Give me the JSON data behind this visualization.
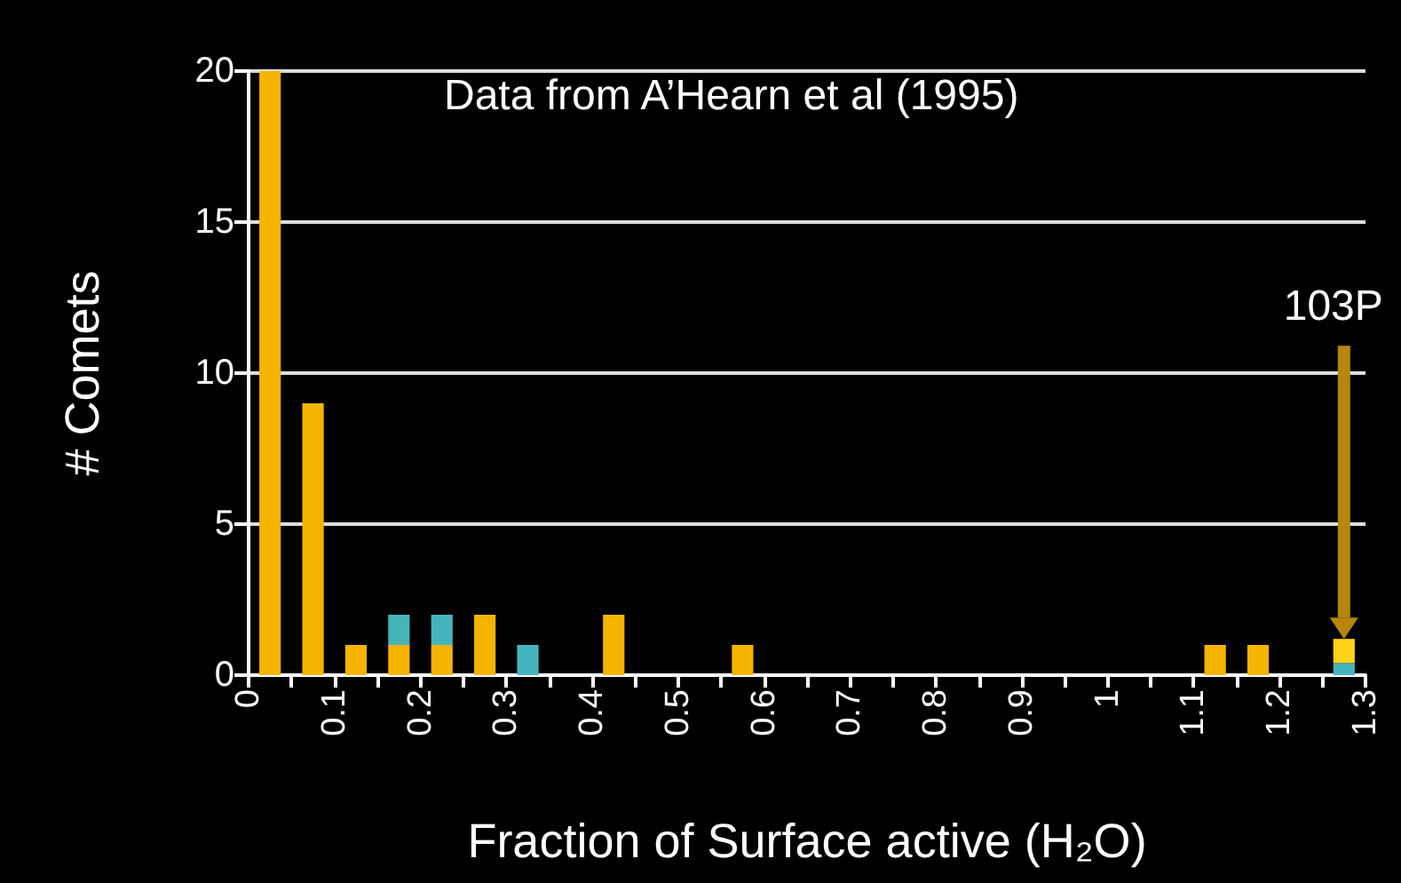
{
  "chart_data": {
    "type": "bar",
    "xlabel": "Fraction of Surface active (H₂O)",
    "ylabel": "# Comets",
    "x": [
      0.025,
      0.075,
      0.125,
      0.175,
      0.225,
      0.275,
      0.325,
      0.375,
      0.425,
      0.475,
      0.525,
      0.575,
      0.625,
      0.675,
      0.725,
      0.775,
      0.825,
      0.875,
      0.925,
      0.975,
      1.025,
      1.075,
      1.125,
      1.175,
      1.225,
      1.275
    ],
    "stacked": true,
    "series": [
      {
        "color": "#f5b400",
        "values": [
          20,
          9,
          1,
          1,
          1,
          2,
          null,
          null,
          2,
          null,
          null,
          1,
          null,
          null,
          null,
          null,
          null,
          null,
          null,
          null,
          null,
          null,
          1,
          1,
          null,
          null
        ]
      },
      {
        "color": "#45b5bd",
        "values": [
          null,
          null,
          null,
          1,
          1,
          null,
          1,
          null,
          null,
          null,
          null,
          null,
          null,
          null,
          null,
          null,
          null,
          null,
          null,
          null,
          null,
          null,
          null,
          null,
          null,
          0.4
        ]
      },
      {
        "color": "#ffd21a",
        "values": [
          null,
          null,
          null,
          null,
          null,
          null,
          null,
          null,
          null,
          null,
          null,
          null,
          null,
          null,
          null,
          null,
          null,
          null,
          null,
          null,
          null,
          null,
          null,
          null,
          null,
          0.8
        ]
      }
    ],
    "xlim": [
      0,
      1.3
    ],
    "xticks": [
      0,
      {
        "value": 0.05,
        "label": null
      },
      0.1,
      {
        "value": 0.15,
        "label": null
      },
      0.2,
      {
        "value": 0.25,
        "label": null
      },
      0.3,
      {
        "value": 0.35,
        "label": null
      },
      0.4,
      {
        "value": 0.45,
        "label": null
      },
      0.5,
      {
        "value": 0.55,
        "label": null
      },
      0.6,
      {
        "value": 0.65,
        "label": null
      },
      0.7,
      {
        "value": 0.75,
        "label": null
      },
      0.8,
      {
        "value": 0.85,
        "label": null
      },
      0.9,
      {
        "value": 0.95,
        "label": null
      },
      1,
      {
        "value": 1.05,
        "label": null
      },
      1.1,
      {
        "value": 1.15,
        "label": null
      },
      1.2,
      {
        "value": 1.25,
        "label": null
      },
      1.3
    ],
    "ylim": [
      0,
      20
    ],
    "yticks": [
      0,
      5,
      10,
      15,
      20
    ],
    "grid": "y",
    "annotations": [
      "Data from A’Hearn et al (1995)",
      "103P"
    ]
  }
}
